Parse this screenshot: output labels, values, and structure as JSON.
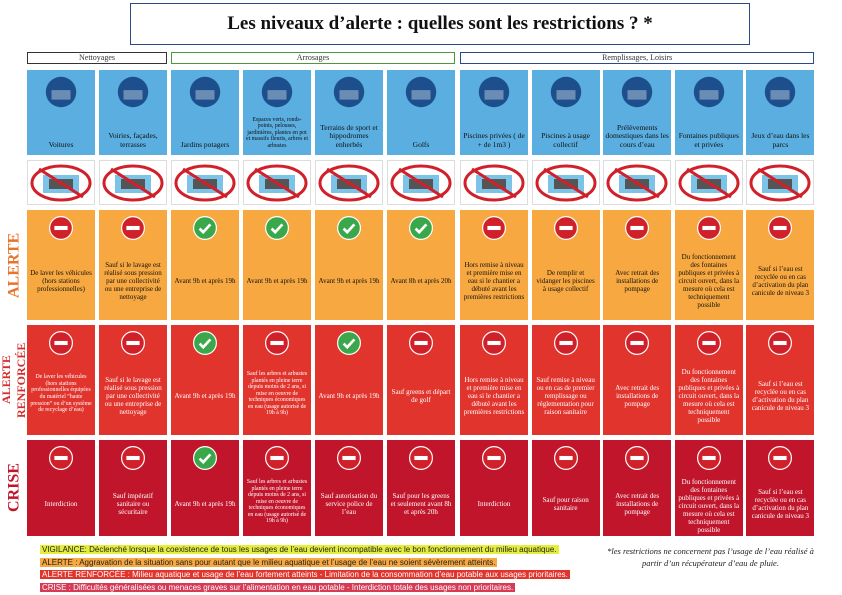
{
  "header": {
    "title": "Les niveaux d’alerte : quelles sont les restrictions ? *"
  },
  "groups": [
    {
      "label": "Nettoyages",
      "first": 0,
      "last": 1
    },
    {
      "label": "Arrosages",
      "first": 2,
      "last": 5
    },
    {
      "label": "Remplissages, Loisirs",
      "first": 6,
      "last": 10
    }
  ],
  "columns": [
    {
      "label": "Voitures"
    },
    {
      "label": "Voiries, façades, terrasses"
    },
    {
      "label": "Jardins potagers"
    },
    {
      "label": "Espaces verts, ronds-points, pelouses, jardinières, plantes en pot et massifs fleuris, arbres et arbustes"
    },
    {
      "label": "Terrains de sport et hippodromes enherbés"
    },
    {
      "label": "Golfs"
    },
    {
      "label": "Piscines privées ( de + de 1m3 )"
    },
    {
      "label": "Piscines à usage collectif"
    },
    {
      "label": "Prélèvements domestiques dans les cours d’eau"
    },
    {
      "label": "Fontaines publiques et privées"
    },
    {
      "label": "Jeux d’eau dans les parcs"
    }
  ],
  "levels": [
    {
      "name": "ALERTE",
      "cells": [
        {
          "status": "no",
          "text": "De laver les véhicules (hors stations professionnelles)"
        },
        {
          "status": "no",
          "text": "Sauf si le lavage est réalisé sous pression par une collectivité ou une entreprise de nettoyage"
        },
        {
          "status": "ok",
          "text": "Avant 9h et après 19h"
        },
        {
          "status": "ok",
          "text": "Avant 9h et après 19h"
        },
        {
          "status": "ok",
          "text": "Avant 9h et après 19h"
        },
        {
          "status": "ok",
          "text": "Avant 8h et après 20h"
        },
        {
          "status": "no",
          "text": "Hors remise à niveau et première mise en eau si le chantier a débuté avant les premières restrictions"
        },
        {
          "status": "no",
          "text": "De remplir et vidanger les piscines à usage collectif"
        },
        {
          "status": "no",
          "text": "Avec retrait des installations de pompage"
        },
        {
          "status": "no",
          "text": "Du fonctionnement des fontaines publiques et privées à circuit ouvert, dans la mesure où cela est techniquement possible"
        },
        {
          "status": "no",
          "text": "Sauf si l’eau est recyclée ou en cas d’activation du plan canicule de niveau 3"
        }
      ]
    },
    {
      "name": "ALERTE RENFORCÉE",
      "cells": [
        {
          "status": "no",
          "text": "De laver les véhicules (hors stations professionnelles équipées du matériel “haute pression” ou d’un système de recyclage d’eau)"
        },
        {
          "status": "no",
          "text": "Sauf si le lavage est réalisé sous pression par une collectivité ou une entreprise de nettoyage"
        },
        {
          "status": "ok",
          "text": "Avant 9h et après 19h"
        },
        {
          "status": "no",
          "text": "Sauf les arbres et arbustes plantés en pleine terre depuis moins de 2 ans, si mise en oeuvre de techniques économiques en eau (usage autorisé de 19h à 9h)"
        },
        {
          "status": "ok",
          "text": "Avant 9h et après 19h"
        },
        {
          "status": "no",
          "text": "Sauf greens et départ de golf"
        },
        {
          "status": "no",
          "text": "Hors remise à niveau et première mise en eau si le chantier a débuté avant les premières restrictions"
        },
        {
          "status": "no",
          "text": "Sauf remise à niveau ou en cas de premier remplissage ou réglementation pour raison sanitaire"
        },
        {
          "status": "no",
          "text": "Avec retrait des installations de pompage"
        },
        {
          "status": "no",
          "text": "Du fonctionnement des fontaines publiques et privées à circuit ouvert, dans la mesure où cela est techniquement possible"
        },
        {
          "status": "no",
          "text": "Sauf si l’eau est recyclée ou en cas d’activation du plan canicule de niveau 3"
        }
      ]
    },
    {
      "name": "CRISE",
      "cells": [
        {
          "status": "no",
          "text": "Interdiction"
        },
        {
          "status": "no",
          "text": "Sauf impératif sanitaire ou sécuritaire"
        },
        {
          "status": "ok",
          "text": "Avant 9h et après 19h"
        },
        {
          "status": "no",
          "text": "Sauf les arbres et arbustes plantés en pleine terre depuis moins de 2 ans, si mise en oeuvre de techniques économiques en eau (usage autorisé de 19h à 9h)"
        },
        {
          "status": "no",
          "text": "Sauf autorisation du service police de l’eau"
        },
        {
          "status": "no",
          "text": "Sauf pour les greens et seulement avant 8h et après 20h"
        },
        {
          "status": "no",
          "text": "Interdiction"
        },
        {
          "status": "no",
          "text": "Sauf pour raison sanitaire"
        },
        {
          "status": "no",
          "text": "Avec retrait des installations de pompage"
        },
        {
          "status": "no",
          "text": "Du fonctionnement des fontaines publiques et privées à circuit ouvert, dans la mesure où cela est techniquement possible"
        },
        {
          "status": "no",
          "text": "Sauf si l’eau est recyclée ou en cas d’activation du plan canicule de niveau 3"
        }
      ]
    }
  ],
  "legend": [
    "VIGILANCE: Déclenché lorsque la coexistence de tous les usages de l’eau devient incompatible avec le bon fonctionnement du milieu aquatique.",
    "ALERTE : Aggravation de la situation sans pour autant que le milieu aquatique et l’usage de l’eau ne soient sévèrement atteints.",
    "ALERTE RENFORCÉE : Milieu aquatique et usage de l’eau fortement atteints - Limitation de la consommation d’eau potable aux usages prioritaires.",
    "CRISE : Difficultés généralisées ou menaces graves sur l’alimentation en eau potable - Interdiction totale des usages non prioritaires."
  ],
  "footnote": "*les restrictions ne concernent pas l’usage de l’eau réalisé à partir d’un récupérateur d’eau de pluie."
}
